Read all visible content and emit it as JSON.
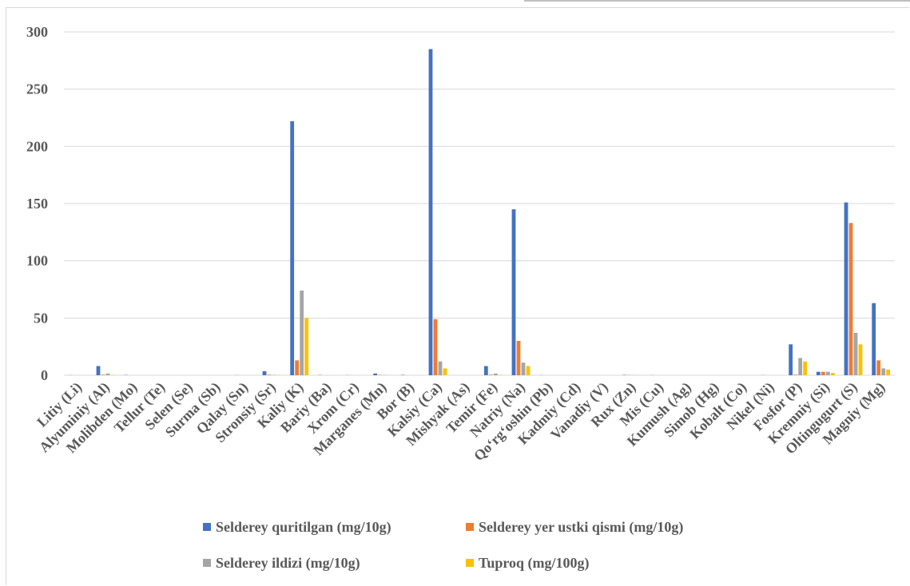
{
  "chart_data": {
    "type": "bar",
    "categories": [
      "Litiy (Li)",
      "Alyuminiy (Al)",
      "Molibden (Mo)",
      "Tellur (Te)",
      "Selen (Se)",
      "Surma (Sb)",
      "Qalay (Sn)",
      "Stronsiy (Sr)",
      "Kaliy (K)",
      "Bariy (Ba)",
      "Xrom (Cr)",
      "Marganes (Mn)",
      "Bor (B)",
      "Kalsiy (Ca)",
      "Mishyak (As)",
      "Temir (Fe)",
      "Natriy (Na)",
      "Qo‘rg‘oshin (Pb)",
      "Kadmiy (Cd)",
      "Vanadiy (V)",
      "Rux (Zn)",
      "Mis (Cu)",
      "Kumush (Ag)",
      "Simob (Hg)",
      "Kobalt (Co)",
      "Nikel (Ni)",
      "Fosfor (P)",
      "Kremniy (Si)",
      "Oltingugurt (S)",
      "Magniy (Mg)"
    ],
    "series": [
      {
        "name": "Selderey quritilgan (mg/10g)",
        "color": "#4472c4",
        "values": [
          0.1,
          8,
          0.2,
          0,
          0,
          0,
          0.1,
          3.5,
          222,
          0.2,
          0.1,
          1.5,
          0.3,
          285,
          0,
          8,
          145,
          0.1,
          0,
          0,
          0.3,
          0.1,
          0,
          0,
          0,
          0.1,
          27,
          3,
          151,
          63
        ]
      },
      {
        "name": "Selderey yer ustki qismi (mg/10g)",
        "color": "#ed7d31",
        "values": [
          0,
          0.5,
          0,
          0,
          0,
          0,
          0,
          0.5,
          13,
          0,
          0,
          0.3,
          0,
          49,
          0,
          0.5,
          30,
          0,
          0,
          0,
          0.2,
          0,
          0,
          0,
          0,
          0,
          0.5,
          3,
          133,
          13
        ]
      },
      {
        "name": "Selderey ildizi (mg/10g)",
        "color": "#a5a5a5",
        "values": [
          0,
          1.5,
          0,
          0,
          0,
          0,
          0,
          0.3,
          74,
          0,
          0,
          0.2,
          0,
          12,
          0,
          1.5,
          11,
          0,
          0,
          0,
          0.1,
          0,
          0,
          0,
          0,
          0,
          15,
          3,
          37,
          6
        ]
      },
      {
        "name": "Tuproq (mg/100g)",
        "color": "#ffc000",
        "values": [
          0,
          0.3,
          0,
          0,
          0,
          0,
          0,
          0.2,
          50,
          0,
          0,
          0.1,
          0,
          6,
          0,
          0.3,
          8,
          0,
          0,
          0,
          0.1,
          0,
          0,
          0,
          0,
          0,
          12,
          2,
          27,
          5
        ]
      }
    ],
    "yticks": [
      "0",
      "50",
      "100",
      "150",
      "200",
      "250",
      "300"
    ],
    "ylim": [
      0,
      300
    ],
    "xlabel": "",
    "ylabel": "",
    "title": "",
    "grid": true,
    "legend_position": "bottom"
  }
}
